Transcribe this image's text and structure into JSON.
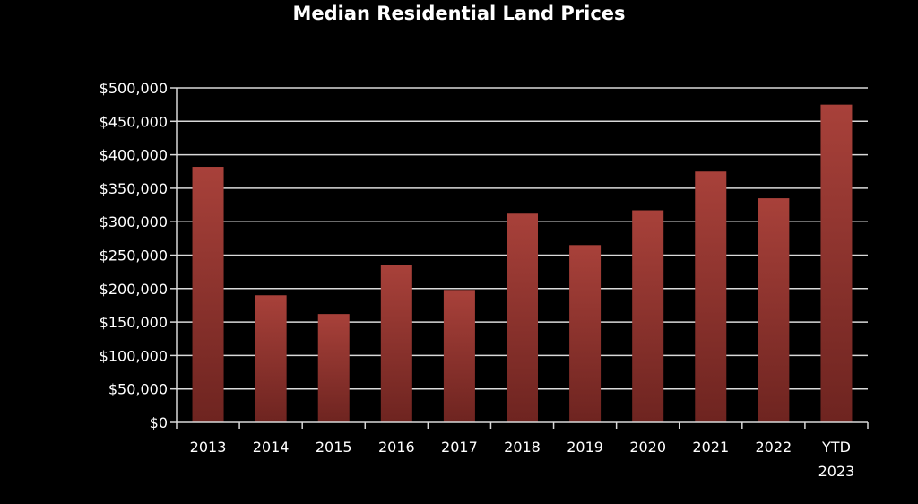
{
  "colors": {
    "background": "#000000",
    "text": "#ffffff",
    "gridline": "#d9d9d9",
    "bar_top": "#a8413a",
    "bar_bottom": "#6e2420"
  },
  "chart_data": {
    "type": "bar",
    "title": "Median Residential Land Prices",
    "xlabel": "",
    "ylabel": "",
    "categories": [
      "2013",
      "2014",
      "2015",
      "2016",
      "2017",
      "2018",
      "2019",
      "2020",
      "2021",
      "2022",
      "YTD 2023"
    ],
    "values": [
      382000,
      190000,
      162000,
      235000,
      198000,
      312000,
      265000,
      317000,
      375000,
      335000,
      475000
    ],
    "ylim": [
      0,
      500000
    ],
    "yticks": [
      0,
      50000,
      100000,
      150000,
      200000,
      250000,
      300000,
      350000,
      400000,
      450000,
      500000
    ],
    "ytick_labels": [
      "$0",
      "$50,000",
      "$100,000",
      "$150,000",
      "$200,000",
      "$250,000",
      "$300,000",
      "$350,000",
      "$400,000",
      "$450,000",
      "$500,000"
    ],
    "grid": true,
    "legend": "none"
  }
}
